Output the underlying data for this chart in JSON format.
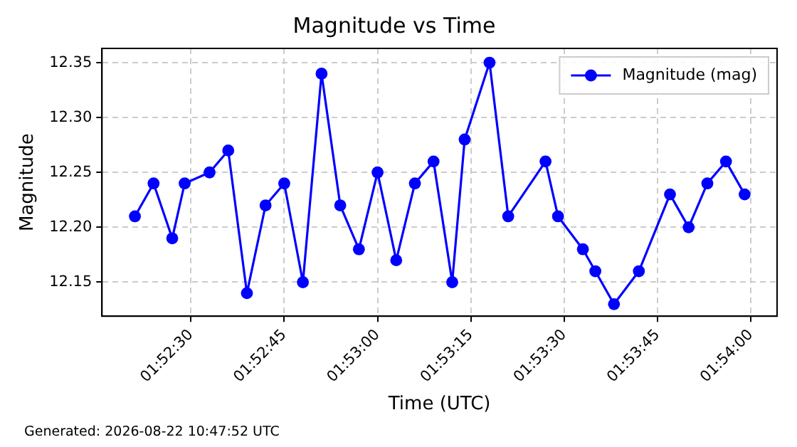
{
  "chart_data": {
    "type": "line",
    "title": "Magnitude vs Time",
    "xlabel": "Time (UTC)",
    "ylabel": "Magnitude",
    "annotations": [
      "Generated: 2026-08-22 10:47:52 UTC"
    ],
    "x": [
      1.8725,
      1.873333,
      1.874167,
      1.874722,
      1.875833,
      1.876667,
      1.8775,
      1.878333,
      1.879167,
      1.88,
      1.880833,
      1.881667,
      1.8825,
      1.883333,
      1.884167,
      1.885,
      1.885833,
      1.886667,
      1.887222,
      1.888333,
      1.889167,
      1.890833,
      1.891389,
      1.8925,
      1.893056,
      1.893889,
      1.895,
      1.896389,
      1.897222,
      1.898056,
      1.898889,
      1.899722
    ],
    "series": [
      {
        "name": "Magnitude (mag)",
        "color": "#0000ff",
        "values": [
          12.21,
          12.24,
          12.19,
          12.24,
          12.25,
          12.27,
          12.14,
          12.22,
          12.24,
          12.15,
          12.34,
          12.22,
          12.18,
          12.25,
          12.17,
          12.24,
          12.26,
          12.15,
          12.28,
          12.35,
          12.21,
          12.26,
          12.21,
          12.18,
          12.16,
          12.13,
          12.16,
          12.23,
          12.2,
          12.24,
          12.26,
          12.23
        ]
      }
    ],
    "xlim": [
      1.87103,
      1.90117
    ],
    "xticks": [
      {
        "value": 1.875,
        "label": "01:52:30"
      },
      {
        "value": 1.879167,
        "label": "01:52:45"
      },
      {
        "value": 1.883333,
        "label": "01:53:00"
      },
      {
        "value": 1.8875,
        "label": "01:53:15"
      },
      {
        "value": 1.891667,
        "label": "01:53:30"
      },
      {
        "value": 1.895833,
        "label": "01:53:45"
      },
      {
        "value": 1.9,
        "label": "01:54:00"
      }
    ],
    "ylim": [
      12.119,
      12.363
    ],
    "yticks": [
      12.15,
      {
        "value": 12.2,
        "label": "12.20"
      },
      12.25,
      {
        "value": 12.3,
        "label": "12.30"
      },
      12.35
    ],
    "grid": true,
    "legend": "top right",
    "marker": "circle",
    "line_style": "solid"
  }
}
